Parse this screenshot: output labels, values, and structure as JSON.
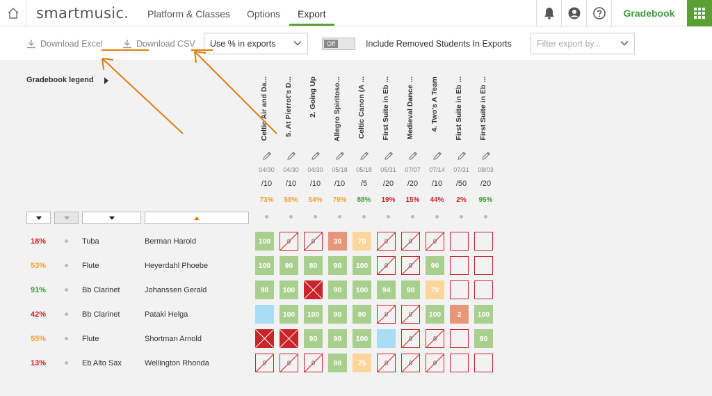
{
  "nav": {
    "logo": "smartmusic.",
    "tabs": [
      {
        "label": "Platform & Classes"
      },
      {
        "label": "Options"
      },
      {
        "label": "Export"
      }
    ],
    "gradebook_label": "Gradebook"
  },
  "toolbar": {
    "download_excel": "Download Excel",
    "download_csv": "Download CSV",
    "percent_select": "Use % in exports",
    "toggle_label": "Off",
    "include_removed": "Include Removed Students In Exports",
    "filter_placeholder": "Filter export by..."
  },
  "legend": {
    "label": "Gradebook legend"
  },
  "assignments": [
    {
      "title": "Celtic Air and Da...",
      "date": "04/30",
      "max": "/10",
      "avg": "73%",
      "avg_color": "#f0a030"
    },
    {
      "title": "5. At Pierrot's D...",
      "date": "04/30",
      "max": "/10",
      "avg": "58%",
      "avg_color": "#f0a030"
    },
    {
      "title": "2. Going Up",
      "date": "04/30",
      "max": "/10",
      "avg": "54%",
      "avg_color": "#f0a030"
    },
    {
      "title": "Allegro Spiritoso...",
      "date": "05/18",
      "max": "/10",
      "avg": "79%",
      "avg_color": "#f0a030"
    },
    {
      "title": "Celtic Canon (A ...",
      "date": "05/18",
      "max": "/5",
      "avg": "88%",
      "avg_color": "#3f9c35"
    },
    {
      "title": "First Suite in Eb ...",
      "date": "05/31",
      "max": "/20",
      "avg": "19%",
      "avg_color": "#c8242b"
    },
    {
      "title": "Medieval Dance ...",
      "date": "07/07",
      "max": "/20",
      "avg": "15%",
      "avg_color": "#c8242b"
    },
    {
      "title": "4. Two's A Team",
      "date": "07/14",
      "max": "/10",
      "avg": "44%",
      "avg_color": "#c8242b"
    },
    {
      "title": "First Suite in Eb ...",
      "date": "07/31",
      "max": "/50",
      "avg": "2%",
      "avg_color": "#c8242b"
    },
    {
      "title": "First Suite in Eb ...",
      "date": "08/03",
      "max": "/20",
      "avg": "95%",
      "avg_color": "#3f9c35"
    }
  ],
  "students": [
    {
      "pct": "18%",
      "pct_color": "#c8242b",
      "instrument": "Tuba",
      "name": "Berman Harold",
      "cells": [
        {
          "t": "g",
          "v": "100"
        },
        {
          "t": "s",
          "v": "0"
        },
        {
          "t": "s",
          "v": "0"
        },
        {
          "t": "o",
          "v": "30"
        },
        {
          "t": "y",
          "v": "70"
        },
        {
          "t": "s",
          "v": "0"
        },
        {
          "t": "s",
          "v": "0"
        },
        {
          "t": "s",
          "v": "0"
        },
        {
          "t": "e",
          "v": ""
        },
        {
          "t": "e",
          "v": ""
        }
      ]
    },
    {
      "pct": "53%",
      "pct_color": "#f0a030",
      "instrument": "Flute",
      "name": "Heyerdahl Phoebe",
      "cells": [
        {
          "t": "g",
          "v": "100"
        },
        {
          "t": "g",
          "v": "90"
        },
        {
          "t": "g",
          "v": "80"
        },
        {
          "t": "g",
          "v": "90"
        },
        {
          "t": "g",
          "v": "100"
        },
        {
          "t": "s",
          "v": "0"
        },
        {
          "t": "s",
          "v": "0"
        },
        {
          "t": "g",
          "v": "90"
        },
        {
          "t": "e",
          "v": ""
        },
        {
          "t": "e",
          "v": ""
        }
      ]
    },
    {
      "pct": "91%",
      "pct_color": "#3f9c35",
      "instrument": "Bb Clarinet",
      "name": "Johanssen Gerald",
      "cells": [
        {
          "t": "g",
          "v": "90"
        },
        {
          "t": "g",
          "v": "100"
        },
        {
          "t": "x",
          "v": ""
        },
        {
          "t": "g",
          "v": "90"
        },
        {
          "t": "g",
          "v": "100"
        },
        {
          "t": "g",
          "v": "94"
        },
        {
          "t": "g",
          "v": "90"
        },
        {
          "t": "y",
          "v": "70"
        },
        {
          "t": "e",
          "v": ""
        },
        {
          "t": "e",
          "v": ""
        }
      ]
    },
    {
      "pct": "42%",
      "pct_color": "#c8242b",
      "instrument": "Bb Clarinet",
      "name": "Pataki Helga",
      "cells": [
        {
          "t": "b",
          "v": ""
        },
        {
          "t": "g",
          "v": "100"
        },
        {
          "t": "g",
          "v": "100"
        },
        {
          "t": "g",
          "v": "90"
        },
        {
          "t": "g",
          "v": "80"
        },
        {
          "t": "s",
          "v": "0"
        },
        {
          "t": "s",
          "v": "0"
        },
        {
          "t": "g",
          "v": "100"
        },
        {
          "t": "o",
          "v": "2"
        },
        {
          "t": "g",
          "v": "100"
        }
      ]
    },
    {
      "pct": "55%",
      "pct_color": "#f0a030",
      "instrument": "Flute",
      "name": "Shortman Arnold",
      "cells": [
        {
          "t": "x",
          "v": ""
        },
        {
          "t": "x",
          "v": ""
        },
        {
          "t": "g",
          "v": "90"
        },
        {
          "t": "g",
          "v": "90"
        },
        {
          "t": "g",
          "v": "100"
        },
        {
          "t": "b",
          "v": ""
        },
        {
          "t": "s",
          "v": "0"
        },
        {
          "t": "s",
          "v": "0"
        },
        {
          "t": "e",
          "v": ""
        },
        {
          "t": "g",
          "v": "90"
        }
      ]
    },
    {
      "pct": "13%",
      "pct_color": "#c8242b",
      "instrument": "Eb Alto Sax",
      "name": "Wellington Rhonda",
      "cells": [
        {
          "t": "s",
          "v": "0"
        },
        {
          "t": "s",
          "v": "0"
        },
        {
          "t": "s",
          "v": "0"
        },
        {
          "t": "g",
          "v": "80"
        },
        {
          "t": "y",
          "v": "75"
        },
        {
          "t": "s",
          "v": "0"
        },
        {
          "t": "s",
          "v": "0"
        },
        {
          "t": "s",
          "v": "0"
        },
        {
          "t": "e",
          "v": ""
        },
        {
          "t": "e",
          "v": ""
        }
      ]
    }
  ],
  "colors": {
    "brand_green": "#5aa032",
    "error_red": "#c8242b",
    "warn_orange": "#f0a030",
    "annotation_orange": "#e07a12"
  }
}
